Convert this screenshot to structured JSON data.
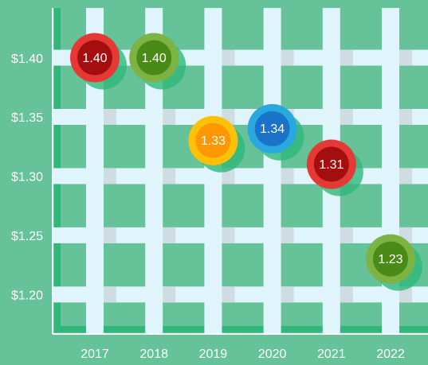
{
  "chart_data": {
    "type": "dot",
    "categories": [
      "2017",
      "2018",
      "2019",
      "2020",
      "2021",
      "2022"
    ],
    "values": [
      1.4,
      1.4,
      1.33,
      1.34,
      1.31,
      1.23
    ],
    "value_labels": [
      "1.40",
      "1.40",
      "1.33",
      "1.34",
      "1.31",
      "1.23"
    ],
    "colors": [
      "#e53935",
      "#7cb342",
      "#ffc107",
      "#29a8e0",
      "#e53935",
      "#7cb342"
    ],
    "inner_colors": [
      "#a50e0e",
      "#4a8a16",
      "#ff9800",
      "#1a73c9",
      "#a50e0e",
      "#4a8a16"
    ],
    "ylim": [
      1.168,
      1.442
    ],
    "yticks": [
      {
        "value": 1.2,
        "label": "$1.20"
      },
      {
        "value": 1.25,
        "label": "$1.25"
      },
      {
        "value": 1.3,
        "label": "$1.30"
      },
      {
        "value": 1.35,
        "label": "$1.35"
      },
      {
        "value": 1.4,
        "label": "$1.40"
      }
    ],
    "grid": true
  }
}
